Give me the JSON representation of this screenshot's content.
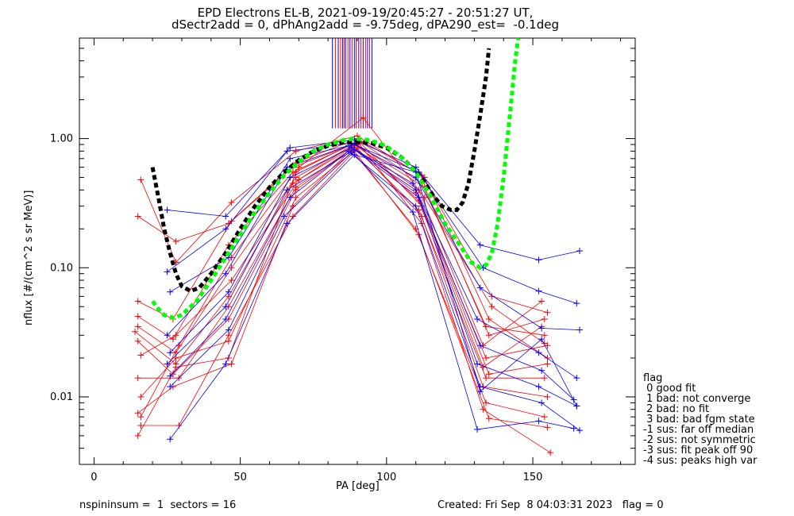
{
  "chart_data": {
    "type": "scatter",
    "title": "EPD Electrons EL-B, 2021-09-19/20:45:27 - 20:51:27 UT,",
    "subtitle": "dSectr2add = 0, dPhAng2add = -9.75deg, dPA290_est=  -0.1deg",
    "xlabel": "PA [deg]",
    "ylabel": "nflux [#/(cm^2 s sr MeV)]",
    "xlim": [
      -5,
      185
    ],
    "ylim": [
      0.003,
      6.0
    ],
    "yscale": "log",
    "x_ticks": [
      0,
      50,
      100,
      150
    ],
    "x_tick_labels": [
      "0",
      "50",
      "100",
      "150"
    ],
    "y_ticks": [
      0.01,
      0.1,
      1.0
    ],
    "y_tick_labels": [
      "0.01",
      "0.10",
      "1.00"
    ],
    "grid": false,
    "colors": {
      "series_a": "#ff0000",
      "series_b": "#0000ff",
      "fit_1": "#000000",
      "fit_2": "#00ff00"
    },
    "series": [
      {
        "style": "fit",
        "color": "#000000",
        "dashed": true,
        "points": [
          [
            20,
            0.6
          ],
          [
            22,
            0.35
          ],
          [
            24,
            0.2
          ],
          [
            26,
            0.13
          ],
          [
            28,
            0.09
          ],
          [
            30,
            0.072
          ],
          [
            33,
            0.066
          ],
          [
            36,
            0.07
          ],
          [
            40,
            0.09
          ],
          [
            45,
            0.13
          ],
          [
            50,
            0.2
          ],
          [
            55,
            0.3
          ],
          [
            60,
            0.42
          ],
          [
            65,
            0.55
          ],
          [
            70,
            0.68
          ],
          [
            75,
            0.8
          ],
          [
            80,
            0.88
          ],
          [
            85,
            0.93
          ],
          [
            90,
            0.94
          ],
          [
            95,
            0.92
          ],
          [
            100,
            0.85
          ],
          [
            105,
            0.72
          ],
          [
            110,
            0.56
          ],
          [
            113,
            0.46
          ],
          [
            116,
            0.36
          ],
          [
            119,
            0.3
          ],
          [
            122,
            0.28
          ],
          [
            124,
            0.28
          ],
          [
            126,
            0.32
          ],
          [
            128,
            0.45
          ],
          [
            130,
            0.8
          ],
          [
            132,
            1.5
          ],
          [
            134,
            3.0
          ],
          [
            135,
            5.0
          ]
        ]
      },
      {
        "style": "fit",
        "color": "#00ff00",
        "dashed": true,
        "points": [
          [
            20,
            0.055
          ],
          [
            22,
            0.048
          ],
          [
            24,
            0.043
          ],
          [
            27,
            0.041
          ],
          [
            30,
            0.043
          ],
          [
            35,
            0.055
          ],
          [
            40,
            0.08
          ],
          [
            45,
            0.12
          ],
          [
            50,
            0.18
          ],
          [
            55,
            0.27
          ],
          [
            60,
            0.38
          ],
          [
            65,
            0.52
          ],
          [
            70,
            0.66
          ],
          [
            75,
            0.8
          ],
          [
            80,
            0.9
          ],
          [
            85,
            0.97
          ],
          [
            89,
            1.0
          ],
          [
            93,
            0.98
          ],
          [
            97,
            0.93
          ],
          [
            100,
            0.87
          ],
          [
            105,
            0.72
          ],
          [
            110,
            0.55
          ],
          [
            115,
            0.36
          ],
          [
            120,
            0.22
          ],
          [
            125,
            0.15
          ],
          [
            129,
            0.11
          ],
          [
            132,
            0.1
          ],
          [
            134,
            0.105
          ],
          [
            136,
            0.13
          ],
          [
            138,
            0.22
          ],
          [
            140,
            0.5
          ],
          [
            142,
            1.4
          ],
          [
            144,
            4.0
          ],
          [
            145,
            6.0
          ]
        ]
      },
      {
        "style": "spikes",
        "color": "#0000ff",
        "x": [
          81.5,
          83.5,
          85.0,
          86.0,
          87.5,
          89.0,
          90.5,
          92.0,
          93.5,
          95.0
        ],
        "ymin": 1.2,
        "ymax": 6.0
      },
      {
        "style": "spikes",
        "color": "#ff0000",
        "x": [
          82.5,
          84.3,
          85.5,
          86.8,
          88.2,
          89.6,
          91.2,
          92.8,
          94.2
        ],
        "ymin": 1.2,
        "ymax": 6.0
      },
      {
        "style": "lines",
        "color": "#ff0000",
        "marker": "+",
        "curves": [
          [
            [
              15,
              0.25
            ],
            [
              28,
              0.16
            ],
            [
              46,
              0.22
            ],
            [
              69,
              0.65
            ],
            [
              90,
              1.0
            ],
            [
              112,
              0.52
            ],
            [
              136,
              0.06
            ],
            [
              155,
              0.045
            ]
          ],
          [
            [
              16,
              0.48
            ],
            [
              28,
              0.11
            ],
            [
              47,
              0.32
            ],
            [
              69,
              0.8
            ],
            [
              90,
              1.05
            ],
            [
              113,
              0.5
            ],
            [
              135,
              0.04
            ],
            [
              155,
              0.02
            ]
          ],
          [
            [
              15,
              0.055
            ],
            [
              27,
              0.04
            ],
            [
              47,
              0.23
            ],
            [
              68,
              0.6
            ],
            [
              91,
              0.95
            ],
            [
              112,
              0.45
            ],
            [
              134,
              0.035
            ],
            [
              154,
              0.03
            ]
          ],
          [
            [
              15,
              0.042
            ],
            [
              27,
              0.028
            ],
            [
              46,
              0.15
            ],
            [
              68,
              0.55
            ],
            [
              89,
              0.92
            ],
            [
              113,
              0.42
            ],
            [
              135,
              0.03
            ],
            [
              154,
              0.04
            ]
          ],
          [
            [
              15,
              0.035
            ],
            [
              28,
              0.022
            ],
            [
              47,
              0.1
            ],
            [
              69,
              0.5
            ],
            [
              89,
              0.9
            ],
            [
              111,
              0.4
            ],
            [
              133,
              0.025
            ],
            [
              153,
              0.055
            ]
          ],
          [
            [
              14,
              0.032
            ],
            [
              28,
              0.018
            ],
            [
              46,
              0.06
            ],
            [
              68,
              0.45
            ],
            [
              88,
              0.88
            ],
            [
              110,
              0.38
            ],
            [
              134,
              0.02
            ],
            [
              155,
              0.025
            ]
          ],
          [
            [
              15,
              0.027
            ],
            [
              27,
              0.015
            ],
            [
              46,
              0.04
            ],
            [
              69,
              0.4
            ],
            [
              90,
              0.9
            ],
            [
              111,
              0.33
            ],
            [
              133,
              0.017
            ],
            [
              153,
              0.035
            ]
          ],
          [
            [
              16,
              0.021
            ],
            [
              28,
              0.03
            ],
            [
              47,
              0.08
            ],
            [
              70,
              0.48
            ],
            [
              91,
              0.93
            ],
            [
              112,
              0.3
            ],
            [
              135,
              0.015
            ],
            [
              155,
              0.018
            ]
          ],
          [
            [
              15,
              0.014
            ],
            [
              29,
              0.014
            ],
            [
              46,
              0.05
            ],
            [
              69,
              0.42
            ],
            [
              89,
              0.86
            ],
            [
              111,
              0.28
            ],
            [
              134,
              0.014
            ],
            [
              154,
              0.014
            ]
          ],
          [
            [
              16,
              0.01
            ],
            [
              28,
              0.02
            ],
            [
              46,
              0.027
            ],
            [
              69,
              0.35
            ],
            [
              90,
              0.84
            ],
            [
              112,
              0.25
            ],
            [
              133,
              0.012
            ],
            [
              155,
              0.01
            ]
          ],
          [
            [
              15,
              0.0075
            ],
            [
              27,
              0.012
            ],
            [
              47,
              0.018
            ],
            [
              68,
              0.3
            ],
            [
              88,
              0.82
            ],
            [
              110,
              0.2
            ],
            [
              134,
              0.009
            ],
            [
              154,
              0.007
            ]
          ],
          [
            [
              16,
              0.006
            ],
            [
              29,
              0.006
            ],
            [
              46,
              0.03
            ],
            [
              68,
              0.25
            ],
            [
              89,
              0.8
            ],
            [
              111,
              0.18
            ],
            [
              135,
              0.0068
            ],
            [
              155,
              0.0058
            ]
          ],
          [
            [
              15,
              0.005
            ],
            [
              28,
              0.017
            ],
            [
              46,
              0.02
            ],
            [
              69,
              0.55
            ],
            [
              90,
              0.95
            ],
            [
              112,
              0.22
            ],
            [
              133,
              0.008
            ],
            [
              156,
              0.0037
            ]
          ],
          [
            [
              16,
              0.007
            ],
            [
              29,
              0.025
            ],
            [
              47,
              0.12
            ],
            [
              70,
              0.6
            ],
            [
              92,
              1.45
            ],
            [
              113,
              0.35
            ],
            [
              136,
              0.05
            ],
            [
              154,
              0.026
            ]
          ]
        ]
      },
      {
        "style": "lines",
        "color": "#0000ff",
        "marker": "+",
        "curves": [
          [
            [
              25,
              0.28
            ],
            [
              45,
              0.25
            ],
            [
              67,
              0.85
            ],
            [
              89,
              0.98
            ],
            [
              110,
              0.6
            ],
            [
              132,
              0.15
            ],
            [
              152,
              0.115
            ],
            [
              166,
              0.135
            ]
          ],
          [
            [
              25,
              0.093
            ],
            [
              45,
              0.2
            ],
            [
              66,
              0.8
            ],
            [
              88,
              0.92
            ],
            [
              111,
              0.55
            ],
            [
              133,
              0.1
            ],
            [
              152,
              0.066
            ],
            [
              165,
              0.053
            ]
          ],
          [
            [
              26,
              0.065
            ],
            [
              46,
              0.12
            ],
            [
              67,
              0.7
            ],
            [
              89,
              0.9
            ],
            [
              110,
              0.5
            ],
            [
              132,
              0.07
            ],
            [
              153,
              0.034
            ],
            [
              166,
              0.033
            ]
          ],
          [
            [
              25,
              0.03
            ],
            [
              45,
              0.09
            ],
            [
              66,
              0.6
            ],
            [
              87,
              0.88
            ],
            [
              109,
              0.45
            ],
            [
              131,
              0.04
            ],
            [
              152,
              0.022
            ],
            [
              165,
              0.014
            ]
          ],
          [
            [
              26,
              0.022
            ],
            [
              46,
              0.065
            ],
            [
              67,
              0.5
            ],
            [
              88,
              0.85
            ],
            [
              110,
              0.4
            ],
            [
              132,
              0.025
            ],
            [
              153,
              0.016
            ],
            [
              164,
              0.0095
            ]
          ],
          [
            [
              25,
              0.018
            ],
            [
              45,
              0.05
            ],
            [
              66,
              0.4
            ],
            [
              89,
              0.82
            ],
            [
              111,
              0.35
            ],
            [
              131,
              0.018
            ],
            [
              152,
              0.012
            ],
            [
              165,
              0.0085
            ]
          ],
          [
            [
              26,
              0.0145
            ],
            [
              45,
              0.04
            ],
            [
              67,
              0.35
            ],
            [
              87,
              0.8
            ],
            [
              110,
              0.3
            ],
            [
              132,
              0.012
            ],
            [
              153,
              0.009
            ],
            [
              166,
              0.0055
            ]
          ],
          [
            [
              26,
              0.012
            ],
            [
              46,
              0.033
            ],
            [
              65,
              0.25
            ],
            [
              88,
              0.78
            ],
            [
              109,
              0.27
            ],
            [
              131,
              0.0056
            ],
            [
              152,
              0.0065
            ],
            [
              164,
              0.0057
            ]
          ],
          [
            [
              26,
              0.0047
            ],
            [
              45,
              0.018
            ],
            [
              66,
              0.22
            ],
            [
              89,
              0.75
            ],
            [
              110,
              0.55
            ],
            [
              132,
              0.011
            ],
            [
              153,
              0.028
            ],
            [
              165,
              0.0085
            ]
          ]
        ]
      }
    ],
    "legend_title": "flag",
    "legend": [
      " 0 good fit",
      " 1 bad: not converge",
      " 2 bad: no fit",
      " 3 bad: bad fgm state",
      "-1 sus: far off median",
      "-2 sus: not symmetric",
      "-3 sus: fit peak off 90",
      "-4 sus: peaks high var"
    ],
    "legend_placement": "bottom-right",
    "footer_left": "nspininsum =  1  sectors = 16",
    "footer_right": "Created: Fri Sep  8 04:03:31 2023   flag = 0"
  }
}
